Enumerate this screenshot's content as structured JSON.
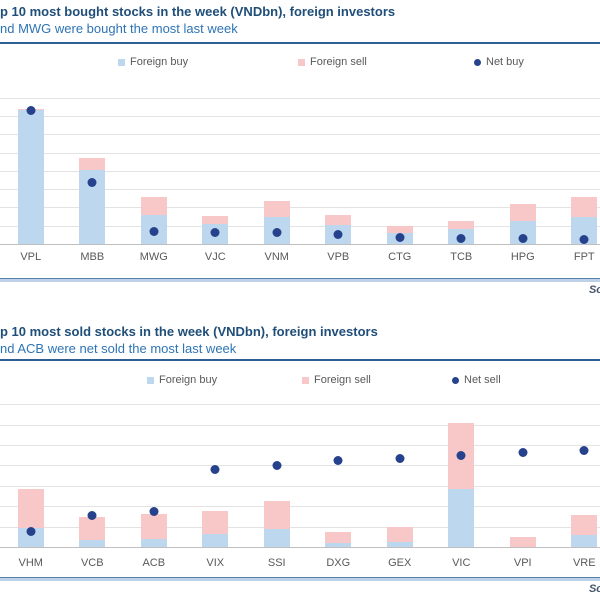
{
  "colors": {
    "foreign_buy": "#BDD7EE",
    "foreign_sell": "#F8C8C9",
    "net_dot": "#27428C",
    "title": "#1F4E79",
    "subtitle": "#2E74B5",
    "divider": "#2E5F94",
    "gridline": "#E3E3E3",
    "axis_line": "#BFBFBF",
    "axis_label": "#595959",
    "bottom_rule_dark": "#5580A8",
    "bottom_rule_light": "#BDD2E8",
    "source_text": "#44546A"
  },
  "chart_data": [
    {
      "type": "bar",
      "stacked": true,
      "title": "p 10 most bought stocks in the week (VNDbn), foreign investors",
      "subtitle": "nd MWG were bought the most last week",
      "source_fragment": "So",
      "legend_position": "top",
      "grid": true,
      "y_axis_labels_visible": false,
      "categories": [
        "VPL",
        "MBB",
        "MWG",
        "VJC",
        "VNM",
        "VPB",
        "CTG",
        "TCB",
        "HPG",
        "FPT"
      ],
      "series": [
        {
          "name": "Foreign buy",
          "role": "bar",
          "color": "#BDD7EE",
          "values": [
            3700,
            2050,
            820,
            565,
            755,
            545,
            335,
            430,
            655,
            755
          ]
        },
        {
          "name": "Foreign sell",
          "role": "bar",
          "color": "#F8C8C9",
          "values": [
            30,
            330,
            485,
            235,
            455,
            275,
            185,
            225,
            455,
            545
          ]
        },
        {
          "name": "Net buy",
          "role": "scatter",
          "color": "#27428C",
          "values": [
            3670,
            1700,
            360,
            345,
            335,
            290,
            200,
            185,
            170,
            155
          ]
        }
      ],
      "ylim": [
        0,
        4100
      ],
      "gridline_step": 500,
      "units": "VNDbn (estimated, y-axis cropped out of frame)"
    },
    {
      "type": "bar",
      "stacked": true,
      "title": "p 10 most sold stocks in the week (VNDbn), foreign investors",
      "subtitle": "nd ACB were net sold the most last week",
      "source_fragment": "So",
      "legend_position": "top",
      "grid": true,
      "y_axis_labels_visible": false,
      "categories": [
        "VHM",
        "VCB",
        "ACB",
        "VIX",
        "SSI",
        "DXG",
        "GEX",
        "VIC",
        "VPI",
        "VRE"
      ],
      "series": [
        {
          "name": "Foreign buy",
          "role": "bar",
          "color": "#BDD7EE",
          "values": [
            200,
            75,
            90,
            135,
            185,
            45,
            60,
            575,
            10,
            125
          ]
        },
        {
          "name": "Foreign sell",
          "role": "bar",
          "color": "#F8C8C9",
          "values": [
            375,
            230,
            240,
            225,
            280,
            115,
            145,
            650,
            95,
            200
          ]
        },
        {
          "name": "Net sell",
          "role": "scatter",
          "color": "#27428C",
          "values": [
            -175,
            -155,
            -150,
            -100,
            -95,
            -88,
            -86,
            -82,
            -79,
            -76
          ]
        }
      ],
      "ylim": [
        0,
        1450
      ],
      "gridline_step": 200,
      "secondary_ylim": [
        -195,
        -15
      ],
      "units": "VNDbn (estimated, y-axis cropped out of frame)"
    }
  ]
}
